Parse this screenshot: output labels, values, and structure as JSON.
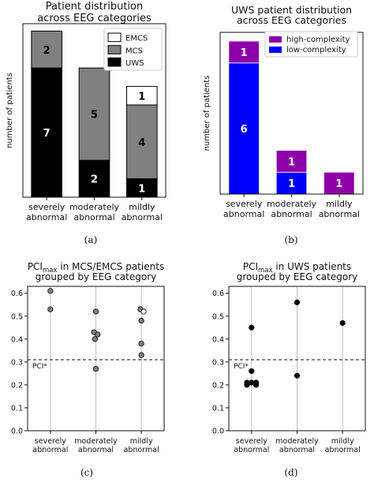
{
  "chart_data": [
    {
      "type": "bar",
      "panel": "(a)",
      "title": [
        "Patient distribution",
        "across EEG categories"
      ],
      "ylabel": "number of patients",
      "categories": [
        [
          "severely",
          "abnormal"
        ],
        [
          "moderately",
          "abnormal"
        ],
        [
          "mildly",
          "abnormal"
        ]
      ],
      "ylim": [
        0,
        9.4
      ],
      "stacked": true,
      "series": [
        {
          "name": "UWS",
          "color": "#000000",
          "label_color": "#ffffff",
          "values": [
            7,
            2,
            1
          ]
        },
        {
          "name": "MCS",
          "color": "#808080",
          "label_color": "#000000",
          "values": [
            2,
            5,
            4
          ]
        },
        {
          "name": "EMCS",
          "color": "#ffffff",
          "label_color": "#000000",
          "values": [
            0,
            0,
            1
          ]
        }
      ],
      "legend_order": [
        "EMCS",
        "MCS",
        "UWS"
      ],
      "legend": "top-right",
      "grid": false
    },
    {
      "type": "bar",
      "panel": "(b)",
      "title": [
        "UWS patient distribution",
        "across EEG categories"
      ],
      "ylabel": "number of patients",
      "categories": [
        [
          "severely",
          "abnormal"
        ],
        [
          "moderately",
          "abnormal"
        ],
        [
          "mildly",
          "abnormal"
        ]
      ],
      "ylim": [
        0,
        7.4
      ],
      "stacked": true,
      "series": [
        {
          "name": "low-complexity",
          "color": "#0000ff",
          "label_color": "#ffffff",
          "values": [
            6,
            1,
            0
          ]
        },
        {
          "name": "high-complexity",
          "color": "#8e00a8",
          "label_color": "#ffffff",
          "values": [
            1,
            1,
            1
          ]
        }
      ],
      "legend_order": [
        "high-complexity",
        "low-complexity"
      ],
      "legend": "top-right",
      "grid": false
    },
    {
      "type": "scatter",
      "panel": "(c)",
      "title": [
        "PCI",
        "max",
        " in MCS/EMCS patients",
        "grouped by EEG category"
      ],
      "categories": [
        [
          "severely",
          "abnormal"
        ],
        [
          "moderately",
          "abnormal"
        ],
        [
          "mildly",
          "abnormal"
        ]
      ],
      "ylim": [
        0,
        0.63
      ],
      "yticks": [
        "0.0",
        "0.1",
        "0.2",
        "0.3",
        "0.4",
        "0.5",
        "0.6"
      ],
      "threshold": {
        "label": "PCI*",
        "value": 0.31
      },
      "grid": "vertical",
      "points": [
        {
          "cat": 0,
          "dx": 0,
          "y": 0.61,
          "fill": "#808080"
        },
        {
          "cat": 0,
          "dx": 0,
          "y": 0.53,
          "fill": "#808080"
        },
        {
          "cat": 1,
          "dx": 0,
          "y": 0.52,
          "fill": "#808080"
        },
        {
          "cat": 1,
          "dx": -0.04,
          "y": 0.43,
          "fill": "#808080"
        },
        {
          "cat": 1,
          "dx": 0.04,
          "y": 0.42,
          "fill": "#808080"
        },
        {
          "cat": 1,
          "dx": -0.02,
          "y": 0.4,
          "fill": "#808080"
        },
        {
          "cat": 1,
          "dx": 0,
          "y": 0.27,
          "fill": "#808080"
        },
        {
          "cat": 2,
          "dx": -0.02,
          "y": 0.53,
          "fill": "#808080"
        },
        {
          "cat": 2,
          "dx": 0.05,
          "y": 0.52,
          "fill": "#ffffff"
        },
        {
          "cat": 2,
          "dx": 0,
          "y": 0.48,
          "fill": "#808080"
        },
        {
          "cat": 2,
          "dx": 0,
          "y": 0.38,
          "fill": "#808080"
        },
        {
          "cat": 2,
          "dx": 0,
          "y": 0.33,
          "fill": "#808080"
        }
      ]
    },
    {
      "type": "scatter",
      "panel": "(d)",
      "title": [
        "PCI",
        "max",
        " in UWS patients",
        "grouped by EEG category"
      ],
      "categories": [
        [
          "severely",
          "abnormal"
        ],
        [
          "moderately",
          "abnormal"
        ],
        [
          "mildly",
          "abnormal"
        ]
      ],
      "ylim": [
        0,
        0.63
      ],
      "yticks": [
        "0.0",
        "0.1",
        "0.2",
        "0.3",
        "0.4",
        "0.5",
        "0.6"
      ],
      "threshold": {
        "label": "PCI*",
        "value": 0.31
      },
      "grid": "vertical",
      "points": [
        {
          "cat": 0,
          "dx": 0,
          "y": 0.45,
          "fill": "#000000"
        },
        {
          "cat": 0,
          "dx": 0,
          "y": 0.26,
          "fill": "#000000"
        },
        {
          "cat": 0,
          "dx": -0.1,
          "y": 0.21,
          "fill": "#000000"
        },
        {
          "cat": 0,
          "dx": 0.1,
          "y": 0.21,
          "fill": "#000000"
        },
        {
          "cat": 0,
          "dx": 0,
          "y": 0.21,
          "fill": "#000000"
        },
        {
          "cat": 0,
          "dx": -0.1,
          "y": 0.2,
          "fill": "#000000"
        },
        {
          "cat": 0,
          "dx": 0.1,
          "y": 0.2,
          "fill": "#000000"
        },
        {
          "cat": 1,
          "dx": 0,
          "y": 0.56,
          "fill": "#000000"
        },
        {
          "cat": 1,
          "dx": 0,
          "y": 0.24,
          "fill": "#000000"
        },
        {
          "cat": 2,
          "dx": 0,
          "y": 0.47,
          "fill": "#000000"
        }
      ]
    }
  ]
}
